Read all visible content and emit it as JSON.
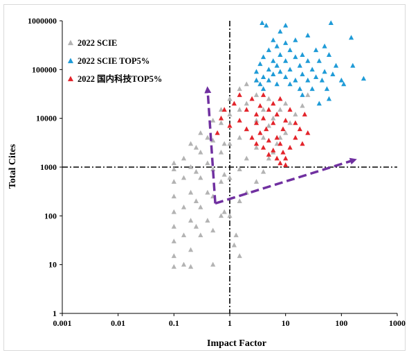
{
  "chart_data": {
    "type": "scatter",
    "xlabel": "Impact Factor",
    "ylabel": "Total Cites",
    "xscale": "log",
    "yscale": "log",
    "xlim": [
      0.001,
      1000
    ],
    "ylim": [
      1,
      1000000
    ],
    "x_ticks": [
      "0.001",
      "0.01",
      "0.1",
      "1",
      "10",
      "100",
      "1000"
    ],
    "y_ticks": [
      "1",
      "10",
      "100",
      "1000",
      "10000",
      "100000",
      "1000000"
    ],
    "reference_lines": {
      "x": 1,
      "y": 1000,
      "style": "dash-dot"
    },
    "legend_position": "top-left",
    "grid": false,
    "series": [
      {
        "name": "2022 SCIE",
        "color": "#b3b3b3",
        "marker": "triangle",
        "points": [
          [
            0.1,
            9
          ],
          [
            0.1,
            15
          ],
          [
            0.1,
            30
          ],
          [
            0.1,
            60
          ],
          [
            0.1,
            120
          ],
          [
            0.1,
            250
          ],
          [
            0.1,
            500
          ],
          [
            0.1,
            900
          ],
          [
            0.1,
            1200
          ],
          [
            0.15,
            10
          ],
          [
            0.15,
            40
          ],
          [
            0.15,
            150
          ],
          [
            0.15,
            600
          ],
          [
            0.15,
            1500
          ],
          [
            0.2,
            9
          ],
          [
            0.2,
            20
          ],
          [
            0.2,
            80
          ],
          [
            0.2,
            300
          ],
          [
            0.2,
            1000
          ],
          [
            0.2,
            3000
          ],
          [
            0.25,
            60
          ],
          [
            0.25,
            200
          ],
          [
            0.25,
            800
          ],
          [
            0.25,
            2500
          ],
          [
            0.3,
            40
          ],
          [
            0.3,
            150
          ],
          [
            0.3,
            600
          ],
          [
            0.3,
            2000
          ],
          [
            0.3,
            5000
          ],
          [
            0.4,
            80
          ],
          [
            0.4,
            300
          ],
          [
            0.4,
            1200
          ],
          [
            0.4,
            4000
          ],
          [
            0.5,
            10
          ],
          [
            0.5,
            50
          ],
          [
            0.5,
            250
          ],
          [
            0.5,
            900
          ],
          [
            0.5,
            3500
          ],
          [
            0.5,
            9000
          ],
          [
            0.7,
            100
          ],
          [
            0.7,
            500
          ],
          [
            0.7,
            2000
          ],
          [
            0.7,
            8000
          ],
          [
            0.7,
            15000
          ],
          [
            0.8,
            120
          ],
          [
            0.8,
            700
          ],
          [
            0.8,
            3000
          ],
          [
            1,
            100
          ],
          [
            1,
            600
          ],
          [
            1,
            3000
          ],
          [
            1,
            12000
          ],
          [
            1,
            25000
          ],
          [
            1.2,
            25
          ],
          [
            1.3,
            40
          ],
          [
            1.5,
            15
          ],
          [
            1.5,
            200
          ],
          [
            1.5,
            900
          ],
          [
            1.5,
            4000
          ],
          [
            1.5,
            15000
          ],
          [
            1.5,
            40000
          ],
          [
            2,
            300
          ],
          [
            2,
            1500
          ],
          [
            2,
            6000
          ],
          [
            2,
            20000
          ],
          [
            2,
            50000
          ],
          [
            3,
            500
          ],
          [
            3,
            2500
          ],
          [
            3,
            9000
          ],
          [
            3,
            30000
          ],
          [
            3,
            60000
          ],
          [
            4,
            800
          ],
          [
            4,
            4000
          ],
          [
            4,
            15000
          ],
          [
            5,
            1500
          ],
          [
            5,
            7000
          ],
          [
            5,
            25000
          ],
          [
            6,
            2000
          ],
          [
            6,
            10000
          ],
          [
            7,
            3000
          ],
          [
            7,
            12000
          ],
          [
            8,
            4000
          ],
          [
            8,
            15000
          ],
          [
            10,
            5000
          ],
          [
            10,
            20000
          ],
          [
            12,
            8000
          ],
          [
            15,
            12000
          ],
          [
            20,
            18000
          ],
          [
            25,
            30000
          ]
        ]
      },
      {
        "name": "2022 SCIE TOP5%",
        "color": "#1f9bd7",
        "marker": "triangle",
        "points": [
          [
            3,
            60000
          ],
          [
            3,
            90000
          ],
          [
            3.5,
            50000
          ],
          [
            3.5,
            130000
          ],
          [
            4,
            70000
          ],
          [
            4,
            180000
          ],
          [
            4,
            40000
          ],
          [
            5,
            100000
          ],
          [
            5,
            250000
          ],
          [
            5,
            60000
          ],
          [
            6,
            150000
          ],
          [
            6,
            400000
          ],
          [
            6,
            80000
          ],
          [
            7,
            120000
          ],
          [
            7,
            300000
          ],
          [
            7,
            50000
          ],
          [
            8,
            200000
          ],
          [
            8,
            90000
          ],
          [
            8,
            600000
          ],
          [
            10,
            70000
          ],
          [
            10,
            150000
          ],
          [
            10,
            350000
          ],
          [
            10,
            800000
          ],
          [
            12,
            100000
          ],
          [
            12,
            250000
          ],
          [
            12,
            50000
          ],
          [
            15,
            60000
          ],
          [
            15,
            180000
          ],
          [
            15,
            400000
          ],
          [
            18,
            120000
          ],
          [
            18,
            40000
          ],
          [
            20,
            80000
          ],
          [
            20,
            200000
          ],
          [
            20,
            30000
          ],
          [
            25,
            60000
          ],
          [
            25,
            150000
          ],
          [
            25,
            500000
          ],
          [
            30,
            100000
          ],
          [
            30,
            40000
          ],
          [
            35,
            250000
          ],
          [
            35,
            70000
          ],
          [
            40,
            20000
          ],
          [
            40,
            150000
          ],
          [
            45,
            60000
          ],
          [
            50,
            300000
          ],
          [
            50,
            90000
          ],
          [
            55,
            40000
          ],
          [
            60,
            25000
          ],
          [
            60,
            200000
          ],
          [
            65,
            900000
          ],
          [
            70,
            80000
          ],
          [
            80,
            120000
          ],
          [
            100,
            60000
          ],
          [
            110,
            50000
          ],
          [
            150,
            450000
          ],
          [
            160,
            120000
          ],
          [
            250,
            65000
          ],
          [
            4.5,
            800000
          ],
          [
            3.8,
            900000
          ]
        ]
      },
      {
        "name": "2022 国内科技TOP5%",
        "color": "#e3242b",
        "marker": "triangle",
        "points": [
          [
            0.6,
            5000
          ],
          [
            0.7,
            10000
          ],
          [
            0.8,
            15000
          ],
          [
            1,
            7000
          ],
          [
            1.2,
            20000
          ],
          [
            1.5,
            9000
          ],
          [
            1.5,
            30000
          ],
          [
            2,
            6000
          ],
          [
            2,
            15000
          ],
          [
            2.5,
            4000
          ],
          [
            2.5,
            25000
          ],
          [
            3,
            3000
          ],
          [
            3,
            12000
          ],
          [
            3,
            8000
          ],
          [
            3.5,
            5000
          ],
          [
            3.5,
            18000
          ],
          [
            4,
            2500
          ],
          [
            4,
            10000
          ],
          [
            4,
            30000
          ],
          [
            4.5,
            6000
          ],
          [
            5,
            1800
          ],
          [
            5,
            3500
          ],
          [
            5,
            15000
          ],
          [
            6,
            2200
          ],
          [
            6,
            8000
          ],
          [
            6,
            20000
          ],
          [
            7,
            1500
          ],
          [
            7,
            4000
          ],
          [
            7,
            12000
          ],
          [
            8,
            1200
          ],
          [
            8,
            3000
          ],
          [
            8,
            25000
          ],
          [
            9,
            2000
          ],
          [
            9,
            6000
          ],
          [
            10,
            1100
          ],
          [
            10,
            1500
          ],
          [
            10,
            9000
          ],
          [
            12,
            2500
          ],
          [
            12,
            15000
          ],
          [
            15,
            4000
          ],
          [
            15,
            8000
          ],
          [
            18,
            6000
          ],
          [
            20,
            3000
          ],
          [
            22,
            12000
          ],
          [
            25,
            5000
          ]
        ]
      }
    ],
    "annotations": [
      {
        "type": "dashed-arrow",
        "color": "#7030a0",
        "from": [
          0.55,
          180
        ],
        "to": [
          0.4,
          40000
        ]
      },
      {
        "type": "dashed-arrow",
        "color": "#7030a0",
        "from": [
          0.55,
          180
        ],
        "to": [
          170,
          1400
        ]
      }
    ]
  }
}
